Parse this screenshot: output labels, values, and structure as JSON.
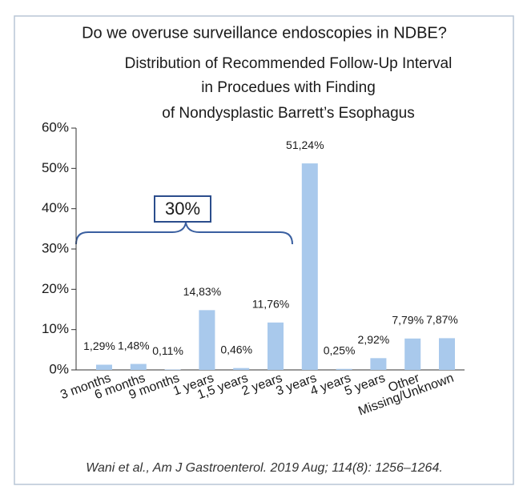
{
  "chart_data": {
    "type": "bar",
    "question": "Do we overuse surveillance endoscopies in NDBE?",
    "title_lines": [
      "Distribution of Recommended Follow-Up Interval",
      "in Procedues with Finding",
      "of Nondysplastic Barrett’s Esophagus"
    ],
    "categories": [
      "3 months",
      "6 months",
      "9 months",
      "1 years",
      "1,5 years",
      "2 years",
      "3 years",
      "4 years",
      "5 years",
      "Other",
      "Missing/Unknown"
    ],
    "values": [
      1.29,
      1.48,
      0.11,
      14.83,
      0.46,
      11.76,
      51.24,
      0.25,
      2.92,
      7.79,
      7.87
    ],
    "value_labels": [
      "1,29%",
      "1,48%",
      "0,11%",
      "14,83%",
      "0,46%",
      "11,76%",
      "51,24%",
      "0,25%",
      "2,92%",
      "7,79%",
      "7,87%"
    ],
    "color": "#a9c9ec",
    "ylim": [
      0,
      60
    ],
    "yticks": [
      {
        "value": 0,
        "label": "0%"
      },
      {
        "value": 10,
        "label": "10%"
      },
      {
        "value": 20,
        "label": "20%"
      },
      {
        "value": 30,
        "label": "30%"
      },
      {
        "value": 40,
        "label": "40%"
      },
      {
        "value": 50,
        "label": "50%"
      },
      {
        "value": 60,
        "label": "60%"
      }
    ],
    "grid": false,
    "annotation": "30%",
    "source": "Wani et al., Am J Gastroenterol. 2019 Aug; 114(8): 1256–1264."
  }
}
